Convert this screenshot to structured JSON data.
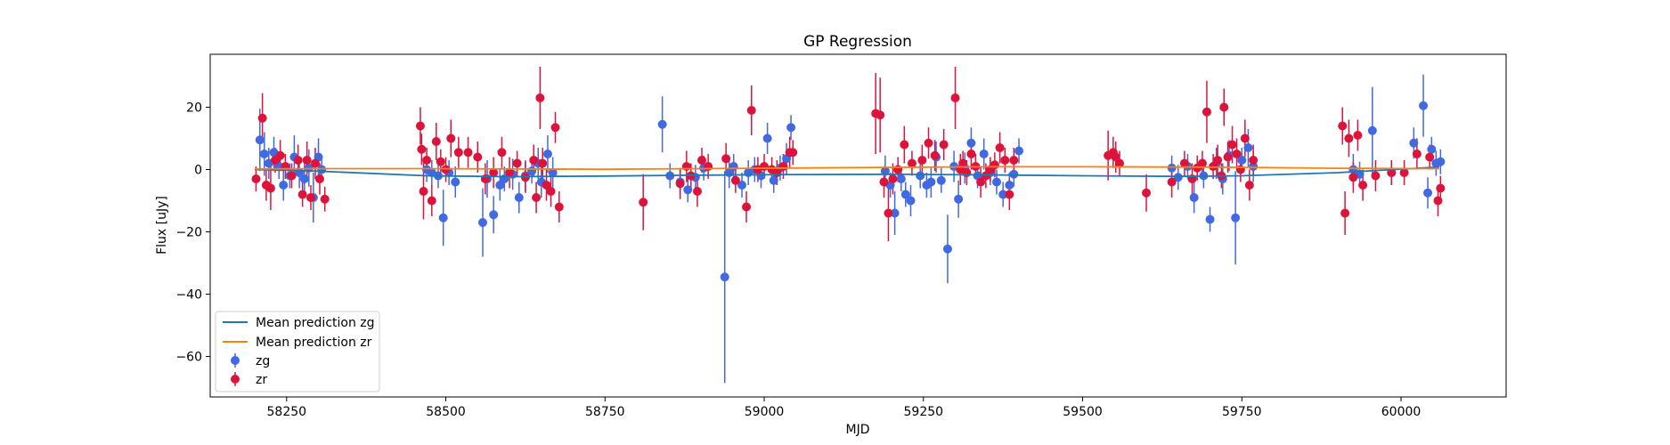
{
  "chart_data": {
    "type": "scatter",
    "title": "GP Regression",
    "xlabel": "MJD",
    "ylabel": "Flux [uJy]",
    "xlim": [
      58130,
      60165
    ],
    "ylim": [
      -73,
      37
    ],
    "xticks": [
      58250,
      58500,
      58750,
      59000,
      59250,
      59500,
      59750,
      60000
    ],
    "yticks": [
      20,
      0,
      -20,
      -40,
      -60
    ],
    "grid": false,
    "legend_position": "lower-left",
    "legend": [
      "Mean prediction zg",
      "Mean prediction zr",
      "zg",
      "zr"
    ],
    "colors": {
      "mean_zg": "#1f77b4",
      "mean_zr": "#ff7f0e",
      "zg": "#4169e1",
      "zr": "#dc143c"
    },
    "mean_prediction_zg": {
      "name": "Mean prediction zg",
      "x": [
        58200,
        58300,
        58470,
        58600,
        58750,
        58900,
        59050,
        59200,
        59350,
        59500,
        59650,
        59750,
        59900,
        60060
      ],
      "y": [
        0,
        -0.5,
        -2,
        -2.3,
        -2.1,
        -1.8,
        -1.6,
        -1.5,
        -1.7,
        -2.0,
        -2.2,
        -2.0,
        -1.0,
        0.8
      ]
    },
    "mean_prediction_zr": {
      "name": "Mean prediction zr",
      "x": [
        58200,
        58300,
        58470,
        58600,
        58750,
        58900,
        59050,
        59200,
        59350,
        59500,
        59650,
        59750,
        59900,
        60060
      ],
      "y": [
        0.2,
        0.3,
        0.3,
        0.2,
        0.1,
        0.3,
        0.5,
        0.7,
        0.9,
        0.9,
        0.8,
        0.7,
        0.4,
        0.3
      ]
    },
    "series": [
      {
        "name": "zg",
        "x": [
          58208,
          58215,
          58222,
          58230,
          58238,
          58245,
          58255,
          58262,
          58270,
          58278,
          58285,
          58292,
          58300,
          58305,
          58470,
          58478,
          58488,
          58496,
          58505,
          58515,
          58558,
          58565,
          58575,
          58585,
          58592,
          58605,
          58615,
          58625,
          58635,
          58645,
          58650,
          58660,
          58668,
          58840,
          58852,
          58868,
          58880,
          58892,
          58905,
          58938,
          58945,
          58952,
          58965,
          58975,
          58985,
          58995,
          59005,
          59015,
          59025,
          59035,
          59042,
          59190,
          59198,
          59205,
          59215,
          59222,
          59230,
          59245,
          59255,
          59262,
          59270,
          59278,
          59288,
          59298,
          59305,
          59315,
          59325,
          59335,
          59345,
          59355,
          59365,
          59375,
          59385,
          59392,
          59400,
          59640,
          59650,
          59665,
          59675,
          59690,
          59700,
          59710,
          59720,
          59730,
          59740,
          59750,
          59760,
          59768,
          59925,
          59935,
          59955,
          59985,
          60020,
          60035,
          60042,
          60048,
          60055,
          60062
        ],
        "y": [
          9.5,
          5.0,
          2.0,
          5.5,
          1.0,
          -5.0,
          -2.0,
          4.0,
          -1.0,
          -3.0,
          0.5,
          -9.0,
          4.0,
          0.0,
          0.0,
          -1.0,
          -2.0,
          -15.5,
          -1.0,
          -4.0,
          -17.0,
          -3.0,
          -14.5,
          -5.0,
          -3.0,
          -1.5,
          -9.0,
          -2.0,
          -0.5,
          2.0,
          -4.0,
          5.0,
          -1.0,
          14.5,
          -2.0,
          -4.0,
          -6.5,
          -2.5,
          0.5,
          -34.5,
          -1.0,
          1.0,
          -5.0,
          -1.0,
          0.0,
          -2.0,
          10.0,
          -3.5,
          0.5,
          3.5,
          13.5,
          -0.5,
          -5.0,
          -14.0,
          -3.0,
          -8.0,
          -10.0,
          -2.0,
          -5.0,
          -4.0,
          4.0,
          -3.5,
          -25.5,
          1.0,
          -9.5,
          0.5,
          8.5,
          -2.0,
          5.0,
          -1.0,
          -4.0,
          -8.0,
          -5.0,
          -1.5,
          6.0,
          0.5,
          -2.5,
          1.0,
          -9.0,
          -2.0,
          -16.0,
          2.0,
          -3.0,
          4.5,
          -15.5,
          3.0,
          7.0,
          1.0,
          0.0,
          -1.5,
          12.5,
          -1.0,
          8.5,
          20.5,
          -7.5,
          6.5,
          2.0,
          2.5
        ],
        "yerr": [
          10,
          7,
          5,
          5,
          4,
          5,
          4,
          7,
          5,
          6,
          6,
          8,
          6,
          4,
          4,
          4,
          4,
          9,
          4,
          5,
          11,
          6,
          6,
          5,
          4,
          5,
          5,
          5,
          4,
          5,
          5,
          6,
          5,
          9,
          4,
          4,
          4,
          4,
          4,
          34,
          5,
          4,
          4,
          4,
          4,
          4,
          5,
          4,
          4,
          5,
          4,
          5,
          4,
          7,
          4,
          4,
          5,
          4,
          4,
          5,
          5,
          4,
          11,
          5,
          6,
          5,
          5,
          4,
          5,
          4,
          4,
          4,
          4,
          4,
          4,
          4,
          4,
          4,
          5,
          4,
          4,
          5,
          5,
          5,
          15,
          4,
          6,
          5,
          5,
          4,
          14,
          4,
          5,
          10,
          5,
          4,
          4,
          4
        ]
      },
      {
        "name": "zr",
        "x": [
          58202,
          58212,
          58218,
          58225,
          58232,
          58240,
          58248,
          58258,
          58268,
          58275,
          58282,
          58288,
          58295,
          58302,
          58310,
          58460,
          58462,
          58465,
          58470,
          58478,
          58485,
          58492,
          58500,
          58508,
          58520,
          58535,
          58550,
          58562,
          58575,
          58588,
          58600,
          58612,
          58625,
          58638,
          58642,
          58648,
          58652,
          58658,
          58665,
          58672,
          58678,
          58810,
          58868,
          58878,
          58885,
          58895,
          58902,
          58912,
          58940,
          58955,
          58972,
          58980,
          58990,
          59000,
          59012,
          59020,
          59030,
          59040,
          59045,
          59175,
          59182,
          59188,
          59195,
          59202,
          59210,
          59220,
          59232,
          59248,
          59258,
          59268,
          59282,
          59300,
          59308,
          59312,
          59318,
          59325,
          59332,
          59340,
          59348,
          59355,
          59362,
          59370,
          59378,
          59385,
          59392,
          59540,
          59548,
          59552,
          59558,
          59600,
          59640,
          59660,
          59672,
          59680,
          59688,
          59695,
          59705,
          59712,
          59718,
          59722,
          59728,
          59735,
          59742,
          59748,
          59755,
          59762,
          59768,
          59908,
          59912,
          59918,
          59925,
          59932,
          59940,
          59960,
          59985,
          60005,
          60025,
          60045,
          60058,
          60062
        ],
        "y": [
          -3.0,
          16.5,
          -5.0,
          -6.0,
          3.0,
          4.5,
          1.0,
          -2.0,
          3.0,
          -8.0,
          3.0,
          -9.0,
          2.0,
          -3.0,
          -9.5,
          14.0,
          6.5,
          -7.0,
          3.0,
          -10.0,
          9.0,
          2.5,
          0.0,
          10.0,
          5.5,
          5.5,
          4.0,
          -3.0,
          -1.0,
          5.5,
          -1.0,
          2.0,
          -2.5,
          3.0,
          -9.0,
          23.0,
          2.0,
          -5.0,
          -7.0,
          13.5,
          -12.0,
          -10.5,
          -4.5,
          1.0,
          -2.0,
          -7.0,
          3.0,
          1.0,
          3.5,
          -3.5,
          -12.0,
          19.0,
          0.0,
          1.0,
          0.0,
          -1.0,
          1.0,
          5.5,
          5.5,
          18.0,
          17.5,
          -4.0,
          -14.0,
          -3.0,
          0.0,
          8.0,
          2.0,
          3.0,
          8.5,
          4.5,
          8.0,
          23.0,
          0.0,
          2.0,
          -1.0,
          5.0,
          1.0,
          -4.0,
          -2.0,
          0.0,
          1.5,
          7.0,
          3.0,
          -8.0,
          3.0,
          4.5,
          5.5,
          4.0,
          2.0,
          -7.5,
          -4.0,
          2.0,
          -3.0,
          0.5,
          2.0,
          18.5,
          1.0,
          3.0,
          -2.0,
          20.0,
          4.0,
          8.0,
          5.0,
          0.0,
          10.0,
          -5.0,
          3.0,
          14.0,
          -14.0,
          10.0,
          -2.5,
          11.0,
          -5.0,
          -2.0,
          -1.0,
          -1.0,
          5.0,
          4.0,
          -10.0,
          -6.0
        ],
        "yerr": [
          4,
          8,
          5,
          7,
          4,
          5,
          4,
          4,
          5,
          4,
          6,
          4,
          5,
          5,
          4,
          6,
          5,
          9,
          4,
          5,
          6,
          4,
          4,
          6,
          5,
          5,
          5,
          5,
          5,
          5,
          5,
          4,
          5,
          5,
          5,
          10,
          5,
          5,
          5,
          5,
          5,
          9,
          5,
          5,
          4,
          5,
          4,
          4,
          5,
          4,
          5,
          8,
          4,
          4,
          4,
          4,
          4,
          5,
          4,
          13,
          12,
          5,
          9,
          5,
          4,
          6,
          4,
          5,
          5,
          5,
          5,
          10,
          5,
          4,
          4,
          5,
          4,
          5,
          4,
          4,
          4,
          5,
          4,
          5,
          4,
          8,
          5,
          5,
          4,
          6,
          5,
          4,
          5,
          4,
          4,
          10,
          4,
          5,
          4,
          6,
          5,
          6,
          5,
          4,
          6,
          5,
          5,
          6,
          7,
          6,
          5,
          5,
          5,
          5,
          4,
          4,
          5,
          4,
          5,
          4
        ]
      }
    ]
  }
}
